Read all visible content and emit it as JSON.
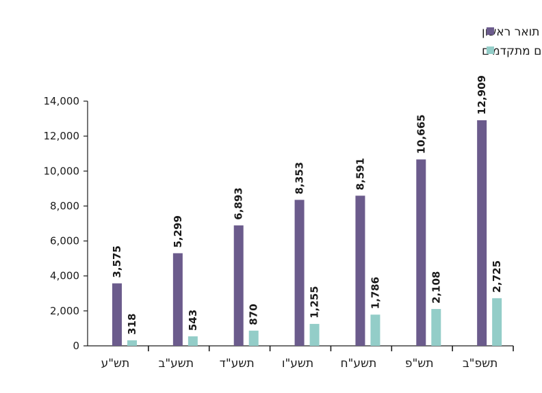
{
  "chart_data": {
    "type": "bar",
    "categories": [
      "תש\"ע",
      "תשע\"ב",
      "תשע\"ד",
      "תשע\"ו",
      "תשע\"ח",
      "תש\"פ",
      "תשפ\"ב"
    ],
    "series": [
      {
        "name": "תואר ראשון",
        "values": [
          3575,
          5299,
          6893,
          8353,
          8591,
          10665,
          12909
        ],
        "value_labels": [
          "3,575",
          "5,299",
          "6,893",
          "8,353",
          "8,591",
          "10,665",
          "12,909"
        ],
        "color": "#6b5b8c"
      },
      {
        "name": "תארים מתקדמים",
        "values": [
          318,
          543,
          870,
          1255,
          1786,
          2108,
          2725
        ],
        "value_labels": [
          "318",
          "543",
          "870",
          "1,255",
          "1,786",
          "2,108",
          "2,725"
        ],
        "color": "#93cdc8"
      }
    ],
    "ylim": [
      0,
      14000
    ],
    "yticks": [
      0,
      2000,
      4000,
      6000,
      8000,
      10000,
      12000,
      14000
    ],
    "ytick_labels": [
      "0",
      "2,000",
      "4,000",
      "6,000",
      "8,000",
      "10,000",
      "12,000",
      "14,000"
    ],
    "xlabel": "",
    "ylabel": "",
    "title": "",
    "legend_position": "top-right",
    "grid": false
  }
}
